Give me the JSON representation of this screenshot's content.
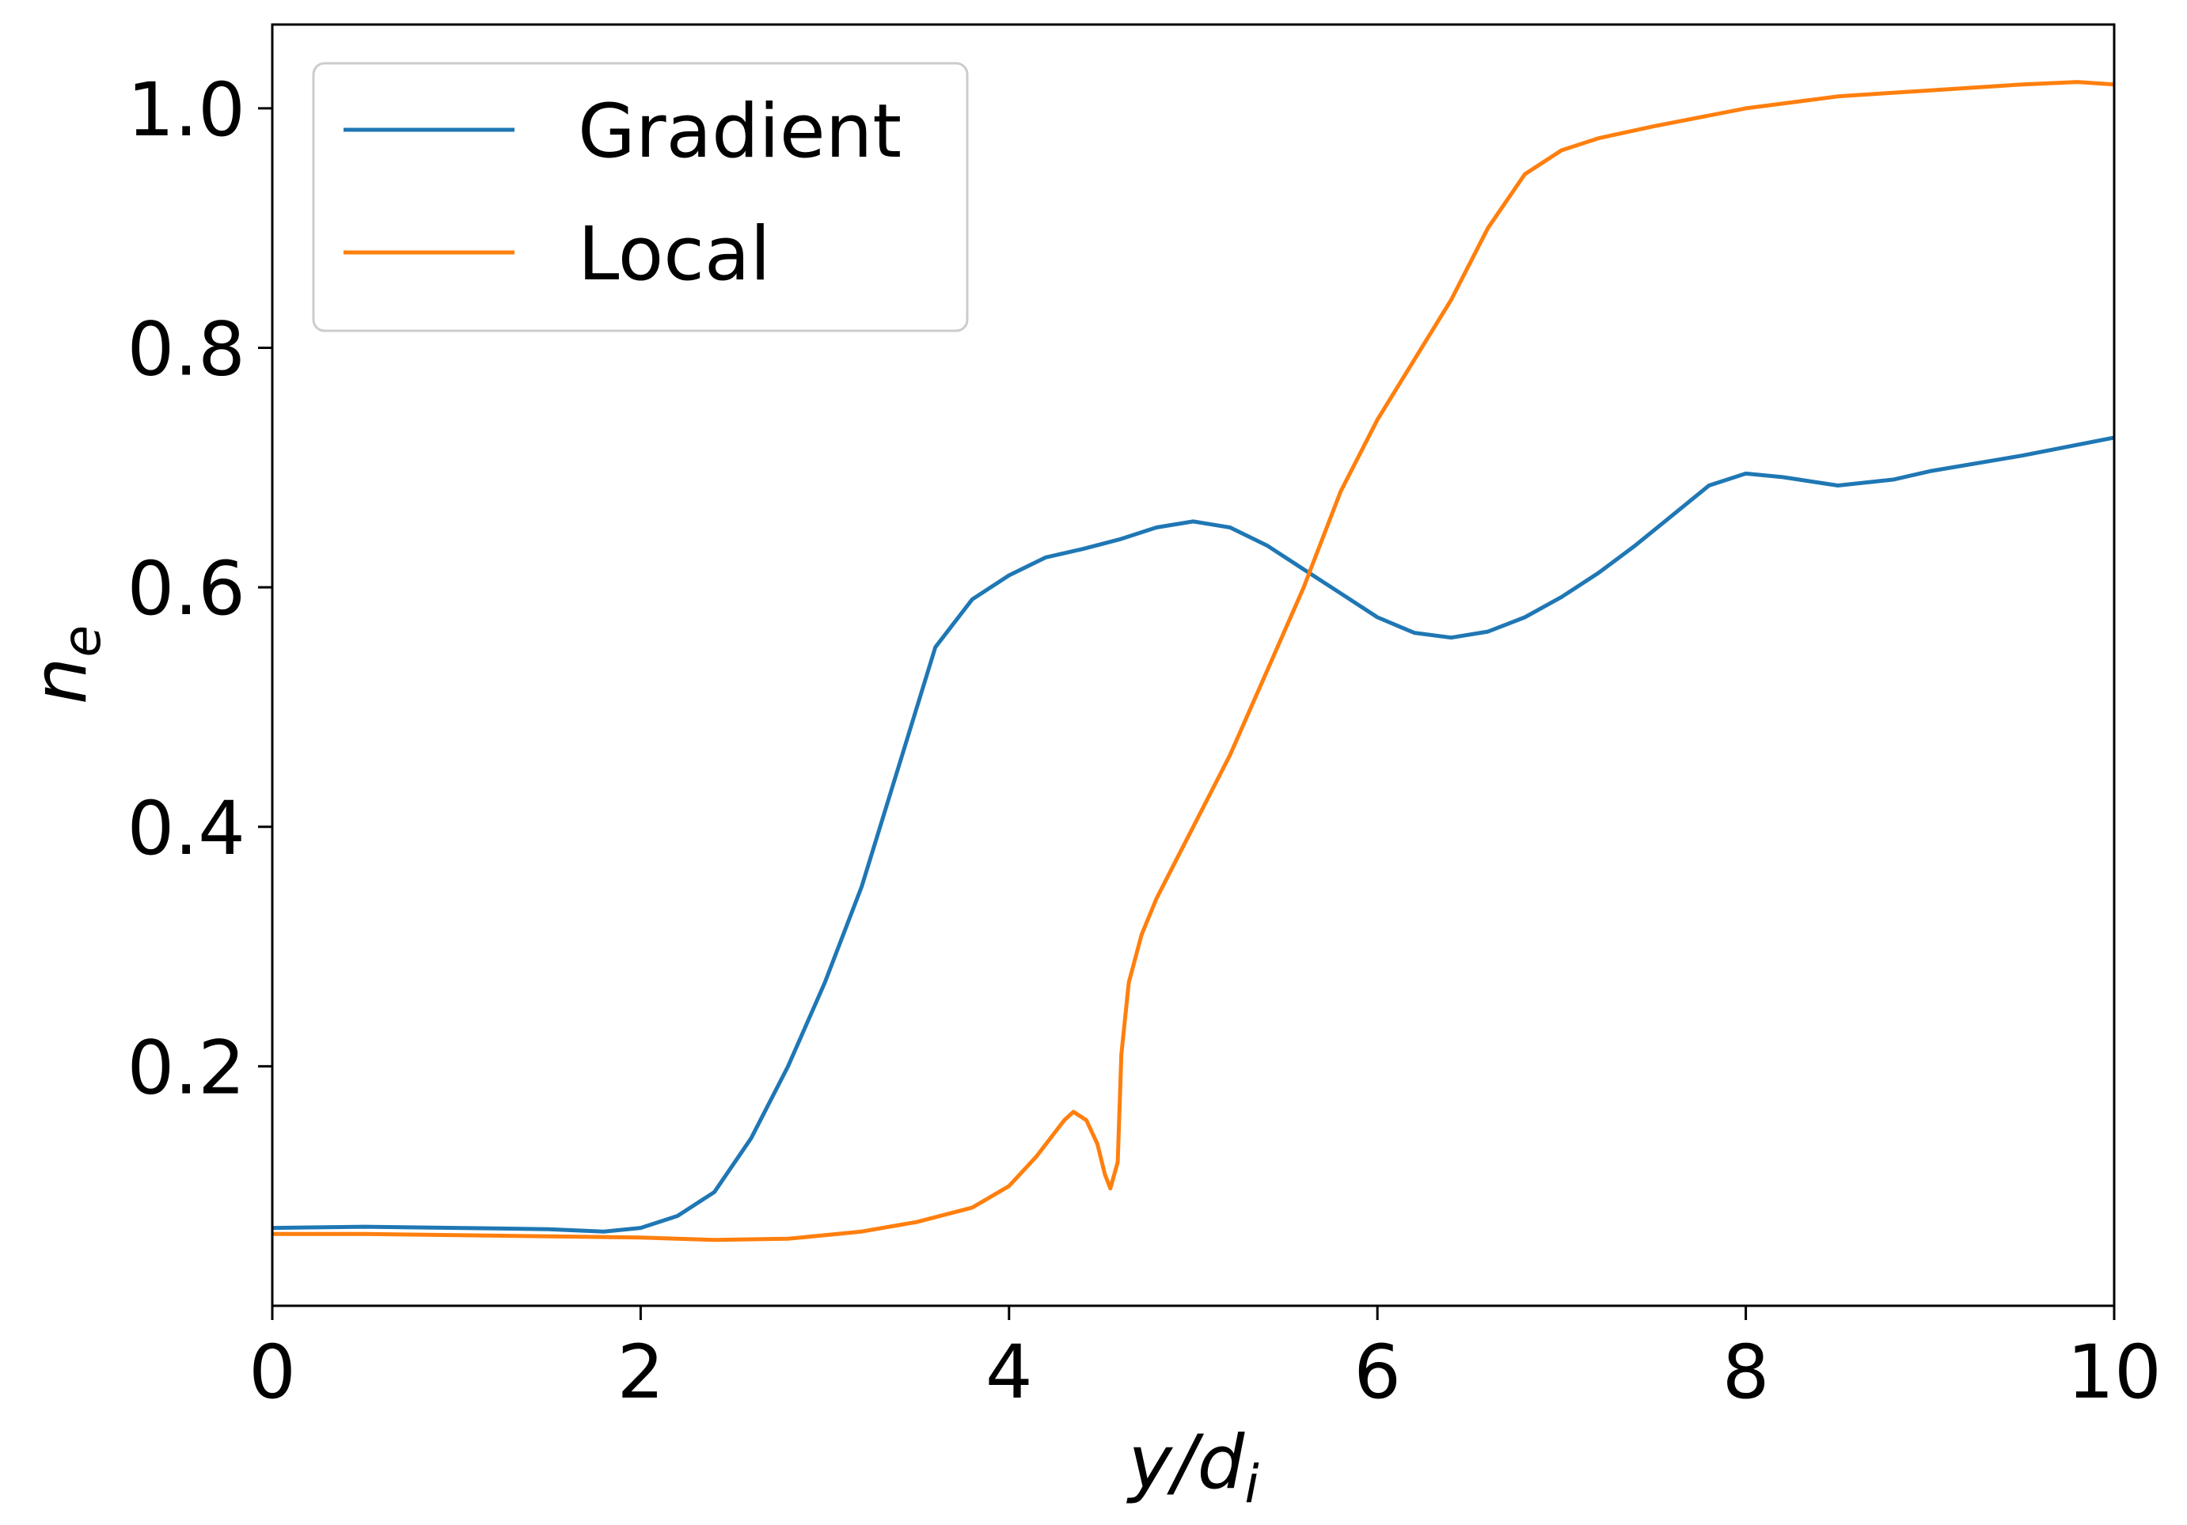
{
  "chart_data": {
    "type": "line",
    "xlabel": "y/d_i",
    "ylabel": "n_e",
    "xlim": [
      0,
      10
    ],
    "ylim": [
      0.0,
      1.07
    ],
    "xticks": [
      0,
      2,
      4,
      6,
      8,
      10
    ],
    "xtick_labels": [
      "0",
      "2",
      "4",
      "6",
      "8",
      "10"
    ],
    "yticks": [
      0.2,
      0.4,
      0.6,
      0.8,
      1.0
    ],
    "ytick_labels": [
      "0.2",
      "0.4",
      "0.6",
      "0.8",
      "1.0"
    ],
    "grid": false,
    "legend_placement": "top-left",
    "series": [
      {
        "name": "Gradient",
        "color": "#1f77b4",
        "x": [
          0,
          0.5,
          1.0,
          1.5,
          1.8,
          2.0,
          2.2,
          2.4,
          2.6,
          2.8,
          3.0,
          3.2,
          3.4,
          3.6,
          3.8,
          4.0,
          4.2,
          4.4,
          4.6,
          4.8,
          5.0,
          5.2,
          5.4,
          5.6,
          5.8,
          6.0,
          6.2,
          6.4,
          6.6,
          6.8,
          7.0,
          7.2,
          7.4,
          7.6,
          7.8,
          8.0,
          8.2,
          8.5,
          8.8,
          9.0,
          9.5,
          10.0
        ],
        "y": [
          0.065,
          0.066,
          0.065,
          0.064,
          0.062,
          0.065,
          0.075,
          0.095,
          0.14,
          0.2,
          0.27,
          0.35,
          0.45,
          0.55,
          0.59,
          0.61,
          0.625,
          0.632,
          0.64,
          0.65,
          0.655,
          0.65,
          0.635,
          0.615,
          0.595,
          0.575,
          0.562,
          0.558,
          0.563,
          0.575,
          0.592,
          0.612,
          0.635,
          0.66,
          0.685,
          0.695,
          0.692,
          0.685,
          0.69,
          0.697,
          0.71,
          0.725
        ]
      },
      {
        "name": "Local",
        "color": "#ff7f0e",
        "x": [
          0,
          0.5,
          1.0,
          1.5,
          2.0,
          2.4,
          2.8,
          3.2,
          3.5,
          3.8,
          4.0,
          4.15,
          4.3,
          4.35,
          4.42,
          4.48,
          4.52,
          4.55,
          4.59,
          4.61,
          4.65,
          4.72,
          4.8,
          4.9,
          5.0,
          5.2,
          5.4,
          5.6,
          5.8,
          6.0,
          6.2,
          6.4,
          6.6,
          6.8,
          7.0,
          7.2,
          7.5,
          8.0,
          8.5,
          9.0,
          9.5,
          9.8,
          10.0
        ],
        "y": [
          0.06,
          0.06,
          0.059,
          0.058,
          0.057,
          0.055,
          0.056,
          0.062,
          0.07,
          0.082,
          0.1,
          0.125,
          0.155,
          0.162,
          0.155,
          0.135,
          0.11,
          0.098,
          0.12,
          0.21,
          0.27,
          0.31,
          0.34,
          0.37,
          0.4,
          0.46,
          0.53,
          0.6,
          0.68,
          0.74,
          0.79,
          0.84,
          0.9,
          0.945,
          0.965,
          0.975,
          0.985,
          1.0,
          1.01,
          1.015,
          1.02,
          1.022,
          1.02
        ]
      }
    ]
  }
}
